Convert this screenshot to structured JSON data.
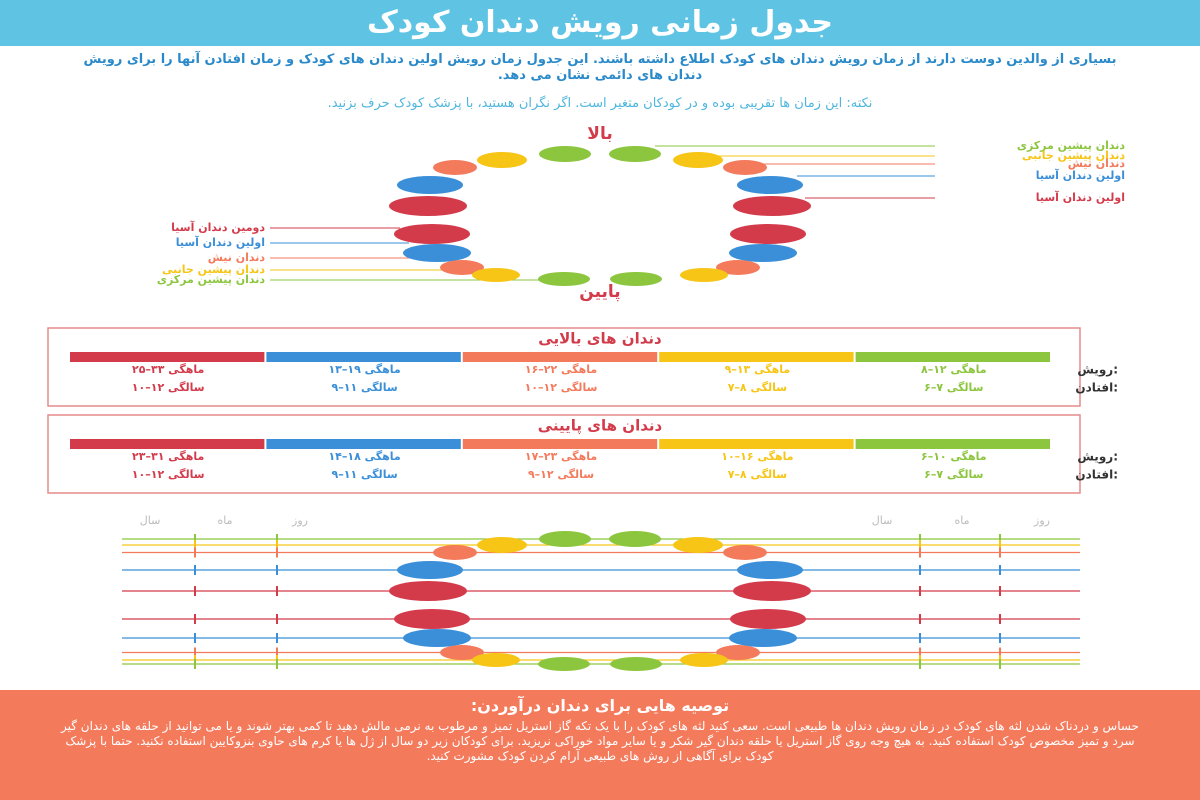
{
  "header": {
    "title": "جدول زمانی رویش دندان کودک"
  },
  "intro": "بسیاری از والدین دوست دارند از زمان رویش دندان های کودک اطلاع داشته باشند. این جدول زمان رویش اولین دندان های کودک و زمان افتادن آنها را برای رویش دندان های دائمی نشان می دهد.",
  "note": "نکته: این زمان ها تقریبی بوده و در کودکان متغیر است. اگر نگران هستید، با پزشک کودک حرف بزنید.",
  "diagram": {
    "top_label": "بالا",
    "bottom_label": "پایین",
    "upper_labels": [
      "دندان پیشین مرکزی",
      "دندان پیشین جانبی",
      "دندان نیش",
      "اولین دندان آسیا",
      "اولین دندان آسیا"
    ],
    "lower_labels": [
      "دومین دندان آسیا",
      "اولین دندان آسیا",
      "دندان نیش",
      "دندان پیشین جانبی",
      "دندان پیشین مرکزی"
    ]
  },
  "tables": [
    {
      "title": "دندان های بالایی",
      "rows": [
        {
          "label": "رویش:",
          "cells": [
            "۸–۱۲ ماهگی",
            "۹–۱۳ ماهگی",
            "۱۶–۲۲ ماهگی",
            "۱۳–۱۹ ماهگی",
            "۲۵–۳۳ ماهگی"
          ]
        },
        {
          "label": "افتادن:",
          "cells": [
            "۶–۷ سالگی",
            "۷–۸ سالگی",
            "۱۰–۱۲ سالگی",
            "۹–۱۱ سالگی",
            "۱۰–۱۲ سالگی"
          ]
        }
      ]
    },
    {
      "title": "دندان های پایینی",
      "rows": [
        {
          "label": "رویش:",
          "cells": [
            "۶–۱۰ ماهگی",
            "۱۰–۱۶ ماهگی",
            "۱۷–۲۳ ماهگی",
            "۱۴–۱۸ ماهگی",
            "۲۳–۳۱ ماهگی"
          ]
        },
        {
          "label": "افتادن:",
          "cells": [
            "۶–۷ سالگی",
            "۷–۸ سالگی",
            "۹–۱۲ سالگی",
            "۹–۱۱ سالگی",
            "۱۰–۱۲ سالگی"
          ]
        }
      ]
    }
  ],
  "record": {
    "right_columns": [
      "روز",
      "ماه",
      "سال"
    ],
    "left_columns": [
      "روز",
      "ماه",
      "سال"
    ]
  },
  "tips": {
    "title": "توصیه هایی برای دندان درآوردن:",
    "text": "حساس و دردناک شدن لثه های کودک در زمان رویش دندان ها طبیعی است. سعی کنید لثه های کودک را با یک تکه گاز استریل تمیز و مرطوب به نرمی مالش دهید تا کمی بهتر شوند و یا می توانید از حلقه های دندان گیر سرد و تمیز مخصوص کودک استفاده کنید. به هیچ وجه روی گاز استریل یا حلقه دندان گیر شکر و یا سایر مواد خوراکی نریزید. برای کودکان زیر دو سال از ژل ها یا کرم های حاوی بنزوکایین استفاده نکنید. حتما با پزشک کودک برای آگاهی از روش های طبیعی آرام کردن کودک مشورت کنید."
  }
}
